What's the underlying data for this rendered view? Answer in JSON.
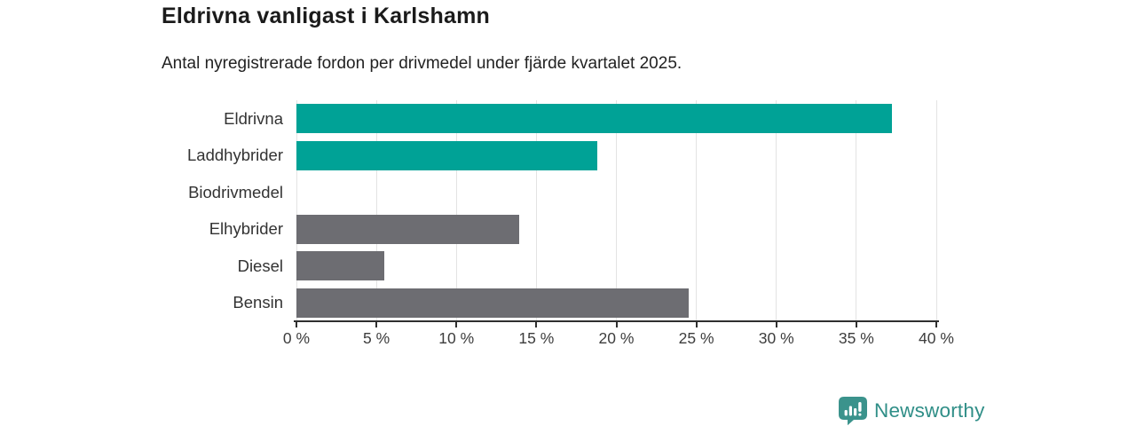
{
  "header": {
    "title": "Eldrivna vanligast i Karlshamn",
    "subtitle": "Antal nyregistrerade fordon per drivmedel under fjärde kvartalet 2025."
  },
  "chart_data": {
    "type": "bar",
    "orientation": "horizontal",
    "title": "Eldrivna vanligast i Karlshamn",
    "subtitle": "Antal nyregistrerade fordon per drivmedel under fjärde kvartalet 2025.",
    "categories": [
      "Eldrivna",
      "Laddhybrider",
      "Biodrivmedel",
      "Elhybrider",
      "Diesel",
      "Bensin"
    ],
    "values": [
      37.2,
      18.8,
      0,
      13.9,
      5.5,
      24.5
    ],
    "unit": "%",
    "bar_colors": [
      "#00a296",
      "#00a296",
      "#6d6d72",
      "#6d6d72",
      "#6d6d72",
      "#6d6d72"
    ],
    "xlim": [
      0,
      40
    ],
    "xtick_labels": [
      "0 %",
      "5 %",
      "10 %",
      "15 %",
      "20 %",
      "25 %",
      "30 %",
      "35 %",
      "40 %"
    ],
    "grid": true,
    "legend": false
  },
  "colors": {
    "teal_bar": "#00a296",
    "gray_bar": "#6d6d72",
    "gridline": "#e3e3e3",
    "axis": "#2f2f2f",
    "brand_teal": "#2f8e87",
    "icon_teal": "#3b938c"
  },
  "branding": {
    "logo_text": "Newsworthy",
    "logo_icon": "speech-bubble-bar-chart-icon"
  }
}
